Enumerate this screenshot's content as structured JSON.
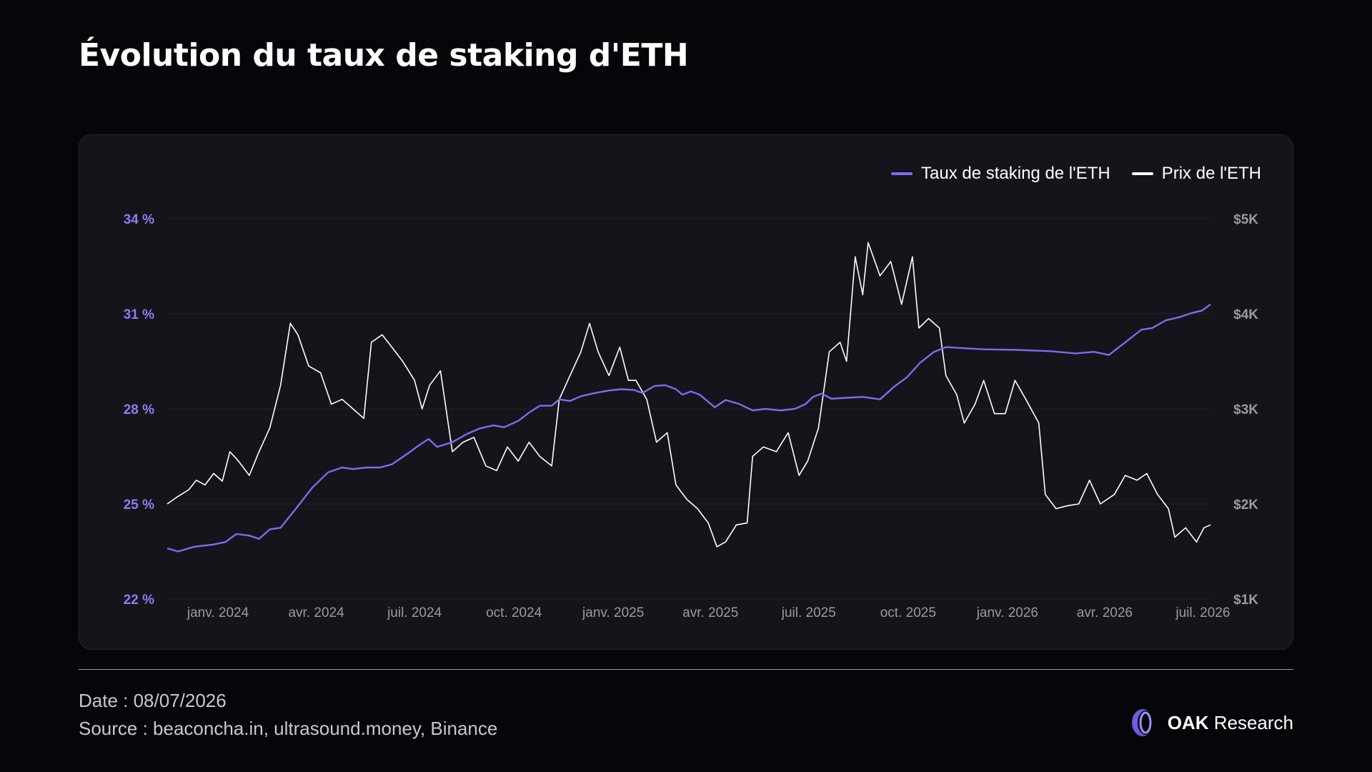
{
  "title": "Évolution du taux de staking d'ETH",
  "footer": {
    "date": "Date : 08/07/2026",
    "source": "Source : beaconcha.in, ultrasound.money, Binance"
  },
  "brand": {
    "name_bold": "OAK",
    "name_rest": "Research"
  },
  "colors": {
    "staking": "#7b6cf0",
    "price": "#ffffff",
    "grid": "#23242c",
    "left_axis": "#8a7ef0",
    "right_axis": "#9a9aa2",
    "x_axis": "#9a9aa2"
  },
  "chart_data": {
    "type": "line",
    "legend_position": "top-right",
    "grid": true,
    "x_range": [
      "2023-11-15",
      "2026-07-08"
    ],
    "x_ticks": [
      {
        "date": "2024-01-01",
        "label": "janv. 2024"
      },
      {
        "date": "2024-04-01",
        "label": "avr. 2024"
      },
      {
        "date": "2024-07-01",
        "label": "juil. 2024"
      },
      {
        "date": "2024-10-01",
        "label": "oct. 2024"
      },
      {
        "date": "2025-01-01",
        "label": "janv. 2025"
      },
      {
        "date": "2025-04-01",
        "label": "avr. 2025"
      },
      {
        "date": "2025-07-01",
        "label": "juil. 2025"
      },
      {
        "date": "2025-10-01",
        "label": "oct. 2025"
      },
      {
        "date": "2026-01-01",
        "label": "janv. 2026"
      },
      {
        "date": "2026-04-01",
        "label": "avr. 2026"
      },
      {
        "date": "2026-07-01",
        "label": "juil. 2026"
      }
    ],
    "y_left": {
      "range": [
        22,
        34
      ],
      "ticks": [
        {
          "value": 22,
          "label": "22 %"
        },
        {
          "value": 25,
          "label": "25 %"
        },
        {
          "value": 28,
          "label": "28 %"
        },
        {
          "value": 31,
          "label": "31 %"
        },
        {
          "value": 34,
          "label": "34 %"
        }
      ]
    },
    "y_right": {
      "range": [
        1000,
        5000
      ],
      "ticks": [
        {
          "value": 1000,
          "label": "$1K"
        },
        {
          "value": 2000,
          "label": "$2K"
        },
        {
          "value": 3000,
          "label": "$3K"
        },
        {
          "value": 4000,
          "label": "$4K"
        },
        {
          "value": 5000,
          "label": "$5K"
        }
      ]
    },
    "series": [
      {
        "name": "Taux de staking de l'ETH",
        "axis": "left",
        "points": [
          [
            "2023-11-15",
            23.6
          ],
          [
            "2023-11-25",
            23.5
          ],
          [
            "2023-12-10",
            23.65
          ],
          [
            "2023-12-28",
            23.72
          ],
          [
            "2024-01-08",
            23.8
          ],
          [
            "2024-01-18",
            24.05
          ],
          [
            "2024-01-30",
            24.0
          ],
          [
            "2024-02-08",
            23.9
          ],
          [
            "2024-02-18",
            24.2
          ],
          [
            "2024-02-28",
            24.25
          ],
          [
            "2024-03-12",
            24.8
          ],
          [
            "2024-03-28",
            25.5
          ],
          [
            "2024-04-12",
            26.0
          ],
          [
            "2024-04-25",
            26.15
          ],
          [
            "2024-05-05",
            26.1
          ],
          [
            "2024-05-18",
            26.15
          ],
          [
            "2024-05-30",
            26.15
          ],
          [
            "2024-06-10",
            26.25
          ],
          [
            "2024-06-25",
            26.6
          ],
          [
            "2024-07-05",
            26.85
          ],
          [
            "2024-07-14",
            27.05
          ],
          [
            "2024-07-22",
            26.8
          ],
          [
            "2024-08-05",
            26.95
          ],
          [
            "2024-08-18",
            27.2
          ],
          [
            "2024-08-30",
            27.38
          ],
          [
            "2024-09-12",
            27.48
          ],
          [
            "2024-09-22",
            27.42
          ],
          [
            "2024-10-05",
            27.62
          ],
          [
            "2024-10-15",
            27.88
          ],
          [
            "2024-10-25",
            28.1
          ],
          [
            "2024-11-05",
            28.1
          ],
          [
            "2024-11-12",
            28.3
          ],
          [
            "2024-11-22",
            28.25
          ],
          [
            "2024-12-02",
            28.4
          ],
          [
            "2024-12-15",
            28.5
          ],
          [
            "2024-12-28",
            28.58
          ],
          [
            "2025-01-08",
            28.62
          ],
          [
            "2025-01-20",
            28.6
          ],
          [
            "2025-01-28",
            28.5
          ],
          [
            "2025-02-08",
            28.72
          ],
          [
            "2025-02-18",
            28.75
          ],
          [
            "2025-02-28",
            28.62
          ],
          [
            "2025-03-06",
            28.45
          ],
          [
            "2025-03-14",
            28.55
          ],
          [
            "2025-03-22",
            28.45
          ],
          [
            "2025-04-05",
            28.05
          ],
          [
            "2025-04-15",
            28.28
          ],
          [
            "2025-04-28",
            28.15
          ],
          [
            "2025-05-10",
            27.95
          ],
          [
            "2025-05-22",
            28.0
          ],
          [
            "2025-06-05",
            27.95
          ],
          [
            "2025-06-18",
            28.0
          ],
          [
            "2025-06-28",
            28.15
          ],
          [
            "2025-07-05",
            28.38
          ],
          [
            "2025-07-13",
            28.48
          ],
          [
            "2025-07-22",
            28.32
          ],
          [
            "2025-08-05",
            28.35
          ],
          [
            "2025-08-20",
            28.38
          ],
          [
            "2025-09-05",
            28.3
          ],
          [
            "2025-09-18",
            28.7
          ],
          [
            "2025-09-30",
            29.0
          ],
          [
            "2025-10-12",
            29.45
          ],
          [
            "2025-10-25",
            29.8
          ],
          [
            "2025-11-05",
            29.95
          ],
          [
            "2025-11-20",
            29.92
          ],
          [
            "2025-12-10",
            29.88
          ],
          [
            "2026-01-10",
            29.86
          ],
          [
            "2026-02-10",
            29.82
          ],
          [
            "2026-03-05",
            29.75
          ],
          [
            "2026-03-22",
            29.8
          ],
          [
            "2026-04-05",
            29.7
          ],
          [
            "2026-04-20",
            30.1
          ],
          [
            "2026-05-05",
            30.5
          ],
          [
            "2026-05-15",
            30.55
          ],
          [
            "2026-05-28",
            30.8
          ],
          [
            "2026-06-10",
            30.9
          ],
          [
            "2026-06-20",
            31.02
          ],
          [
            "2026-06-30",
            31.1
          ],
          [
            "2026-07-08",
            31.3
          ]
        ]
      },
      {
        "name": "Prix de l'ETH",
        "axis": "right",
        "points": [
          [
            "2023-11-15",
            2000
          ],
          [
            "2023-11-25",
            2080
          ],
          [
            "2023-12-05",
            2150
          ],
          [
            "2023-12-12",
            2250
          ],
          [
            "2023-12-20",
            2200
          ],
          [
            "2023-12-28",
            2320
          ],
          [
            "2024-01-05",
            2240
          ],
          [
            "2024-01-12",
            2550
          ],
          [
            "2024-01-20",
            2450
          ],
          [
            "2024-01-30",
            2300
          ],
          [
            "2024-02-08",
            2550
          ],
          [
            "2024-02-18",
            2800
          ],
          [
            "2024-02-28",
            3250
          ],
          [
            "2024-03-08",
            3900
          ],
          [
            "2024-03-15",
            3780
          ],
          [
            "2024-03-25",
            3450
          ],
          [
            "2024-04-05",
            3380
          ],
          [
            "2024-04-15",
            3050
          ],
          [
            "2024-04-25",
            3100
          ],
          [
            "2024-05-05",
            3000
          ],
          [
            "2024-05-15",
            2900
          ],
          [
            "2024-05-22",
            3700
          ],
          [
            "2024-06-01",
            3780
          ],
          [
            "2024-06-10",
            3650
          ],
          [
            "2024-06-20",
            3500
          ],
          [
            "2024-07-01",
            3300
          ],
          [
            "2024-07-08",
            3000
          ],
          [
            "2024-07-15",
            3250
          ],
          [
            "2024-07-25",
            3400
          ],
          [
            "2024-08-05",
            2550
          ],
          [
            "2024-08-15",
            2650
          ],
          [
            "2024-08-25",
            2700
          ],
          [
            "2024-09-05",
            2400
          ],
          [
            "2024-09-15",
            2350
          ],
          [
            "2024-09-25",
            2600
          ],
          [
            "2024-10-05",
            2450
          ],
          [
            "2024-10-15",
            2650
          ],
          [
            "2024-10-25",
            2500
          ],
          [
            "2024-11-05",
            2400
          ],
          [
            "2024-11-12",
            3100
          ],
          [
            "2024-11-22",
            3350
          ],
          [
            "2024-12-02",
            3600
          ],
          [
            "2024-12-10",
            3900
          ],
          [
            "2024-12-18",
            3600
          ],
          [
            "2024-12-28",
            3350
          ],
          [
            "2025-01-07",
            3650
          ],
          [
            "2025-01-15",
            3300
          ],
          [
            "2025-01-22",
            3300
          ],
          [
            "2025-02-01",
            3100
          ],
          [
            "2025-02-10",
            2650
          ],
          [
            "2025-02-20",
            2750
          ],
          [
            "2025-02-28",
            2200
          ],
          [
            "2025-03-10",
            2050
          ],
          [
            "2025-03-20",
            1950
          ],
          [
            "2025-03-30",
            1800
          ],
          [
            "2025-04-07",
            1550
          ],
          [
            "2025-04-15",
            1600
          ],
          [
            "2025-04-25",
            1780
          ],
          [
            "2025-05-05",
            1800
          ],
          [
            "2025-05-10",
            2500
          ],
          [
            "2025-05-20",
            2600
          ],
          [
            "2025-06-01",
            2550
          ],
          [
            "2025-06-12",
            2750
          ],
          [
            "2025-06-22",
            2300
          ],
          [
            "2025-06-30",
            2450
          ],
          [
            "2025-07-10",
            2800
          ],
          [
            "2025-07-20",
            3600
          ],
          [
            "2025-07-30",
            3700
          ],
          [
            "2025-08-05",
            3500
          ],
          [
            "2025-08-13",
            4600
          ],
          [
            "2025-08-20",
            4200
          ],
          [
            "2025-08-25",
            4750
          ],
          [
            "2025-09-05",
            4400
          ],
          [
            "2025-09-15",
            4550
          ],
          [
            "2025-09-25",
            4100
          ],
          [
            "2025-10-05",
            4600
          ],
          [
            "2025-10-11",
            3850
          ],
          [
            "2025-10-20",
            3950
          ],
          [
            "2025-10-30",
            3850
          ],
          [
            "2025-11-05",
            3350
          ],
          [
            "2025-11-15",
            3150
          ],
          [
            "2025-11-22",
            2850
          ],
          [
            "2025-12-02",
            3050
          ],
          [
            "2025-12-10",
            3300
          ],
          [
            "2025-12-20",
            2950
          ],
          [
            "2025-12-30",
            2950
          ],
          [
            "2026-01-08",
            3300
          ],
          [
            "2026-01-18",
            3100
          ],
          [
            "2026-01-30",
            2850
          ],
          [
            "2026-02-05",
            2100
          ],
          [
            "2026-02-15",
            1950
          ],
          [
            "2026-02-25",
            1980
          ],
          [
            "2026-03-08",
            2000
          ],
          [
            "2026-03-18",
            2250
          ],
          [
            "2026-03-28",
            2000
          ],
          [
            "2026-04-10",
            2100
          ],
          [
            "2026-04-20",
            2300
          ],
          [
            "2026-05-01",
            2250
          ],
          [
            "2026-05-10",
            2320
          ],
          [
            "2026-05-20",
            2100
          ],
          [
            "2026-05-30",
            1950
          ],
          [
            "2026-06-05",
            1650
          ],
          [
            "2026-06-15",
            1750
          ],
          [
            "2026-06-25",
            1600
          ],
          [
            "2026-07-02",
            1750
          ],
          [
            "2026-07-08",
            1780
          ]
        ]
      }
    ]
  }
}
